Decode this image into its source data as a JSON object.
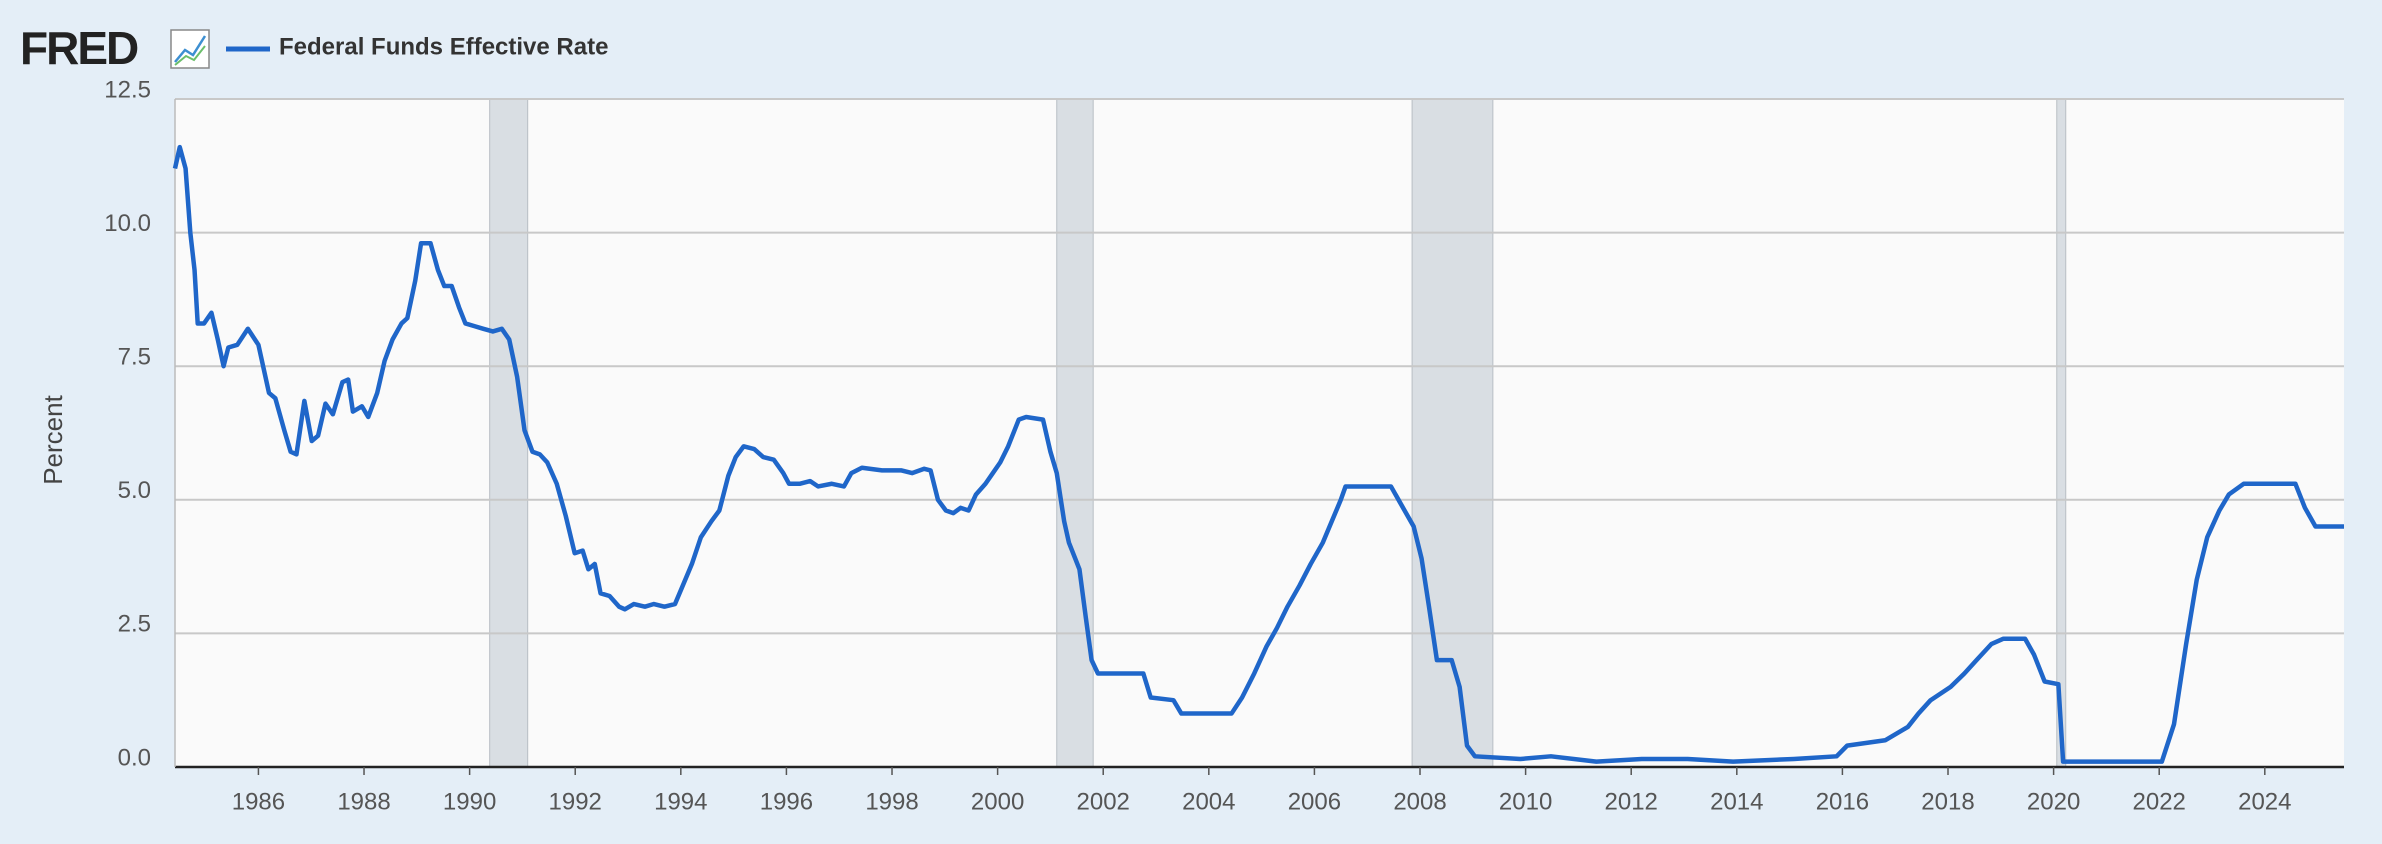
{
  "chart_data": {
    "type": "line",
    "brand": "FRED",
    "y_label": "Percent",
    "series": [
      {
        "name": "Federal Funds Effective Rate",
        "color": "#1f66c9",
        "x": [
          1984.42,
          1984.51,
          1984.62,
          1984.71,
          1984.79,
          1984.85,
          1984.97,
          1985.11,
          1985.23,
          1985.34,
          1985.43,
          1985.6,
          1985.8,
          1986.0,
          1986.2,
          1986.32,
          1986.49,
          1986.61,
          1986.72,
          1986.87,
          1987.01,
          1987.13,
          1987.27,
          1987.41,
          1987.59,
          1987.7,
          1987.79,
          1987.96,
          1988.08,
          1988.25,
          1988.39,
          1988.54,
          1988.71,
          1988.82,
          1988.97,
          1989.08,
          1989.26,
          1989.4,
          1989.52,
          1989.66,
          1989.8,
          1989.92,
          1990.09,
          1990.26,
          1990.44,
          1990.61,
          1990.75,
          1990.9,
          1991.04,
          1991.19,
          1991.33,
          1991.47,
          1991.65,
          1991.82,
          1991.99,
          1992.14,
          1992.25,
          1992.37,
          1992.48,
          1992.65,
          1992.83,
          1992.94,
          1993.11,
          1993.32,
          1993.49,
          1993.69,
          1993.89,
          1994.04,
          1994.21,
          1994.38,
          1994.58,
          1994.73,
          1994.9,
          1995.04,
          1995.19,
          1995.39,
          1995.56,
          1995.76,
          1995.94,
          1996.05,
          1996.25,
          1996.45,
          1996.6,
          1996.86,
          1997.09,
          1997.23,
          1997.43,
          1997.81,
          1998.18,
          1998.38,
          1998.61,
          1998.73,
          1998.87,
          1999.02,
          1999.16,
          1999.3,
          1999.45,
          1999.59,
          1999.77,
          1999.91,
          2000.05,
          2000.2,
          2000.4,
          2000.54,
          2000.86,
          2001.0,
          2001.12,
          2001.26,
          2001.35,
          2001.47,
          2001.55,
          2001.67,
          2001.78,
          2001.9,
          2002.41,
          2002.76,
          2002.9,
          2003.33,
          2003.48,
          2004.43,
          2004.63,
          2004.86,
          2005.09,
          2005.29,
          2005.49,
          2005.72,
          2005.93,
          2006.16,
          2006.33,
          2006.5,
          2006.59,
          2007.45,
          2007.65,
          2007.88,
          2008.03,
          2008.17,
          2008.32,
          2008.6,
          2008.75,
          2008.89,
          2009.04,
          2009.9,
          2010.48,
          2011.34,
          2012.2,
          2013.07,
          2013.93,
          2015.08,
          2015.89,
          2016.09,
          2016.81,
          2017.24,
          2017.44,
          2017.67,
          2018.05,
          2018.31,
          2018.54,
          2018.82,
          2019.05,
          2019.46,
          2019.63,
          2019.83,
          2020.09,
          2020.18,
          2022.05,
          2022.28,
          2022.51,
          2022.71,
          2022.91,
          2023.14,
          2023.32,
          2023.6,
          2024.58,
          2024.76,
          2024.96,
          2025.5
        ],
        "values": [
          11.2,
          11.6,
          11.2,
          10.0,
          9.3,
          8.3,
          8.3,
          8.5,
          8.0,
          7.5,
          7.85,
          7.9,
          8.2,
          7.9,
          7.0,
          6.9,
          6.3,
          5.9,
          5.85,
          6.85,
          6.1,
          6.2,
          6.8,
          6.6,
          7.2,
          7.25,
          6.65,
          6.75,
          6.55,
          7.0,
          7.6,
          8.0,
          8.3,
          8.4,
          9.1,
          9.8,
          9.8,
          9.3,
          9.0,
          9.0,
          8.6,
          8.3,
          8.25,
          8.2,
          8.15,
          8.2,
          8.0,
          7.3,
          6.3,
          5.9,
          5.85,
          5.7,
          5.3,
          4.7,
          4.0,
          4.05,
          3.7,
          3.8,
          3.25,
          3.2,
          3.0,
          2.95,
          3.05,
          3.0,
          3.05,
          3.0,
          3.05,
          3.4,
          3.8,
          4.3,
          4.6,
          4.8,
          5.45,
          5.8,
          6.0,
          5.95,
          5.8,
          5.75,
          5.5,
          5.3,
          5.3,
          5.35,
          5.25,
          5.3,
          5.25,
          5.5,
          5.6,
          5.55,
          5.55,
          5.5,
          5.58,
          5.55,
          5.0,
          4.8,
          4.75,
          4.85,
          4.8,
          5.1,
          5.3,
          5.5,
          5.7,
          6.0,
          6.5,
          6.55,
          6.5,
          5.9,
          5.5,
          4.6,
          4.2,
          3.9,
          3.7,
          2.8,
          2.0,
          1.75,
          1.75,
          1.75,
          1.3,
          1.25,
          1.0,
          1.0,
          1.3,
          1.75,
          2.25,
          2.6,
          3.0,
          3.4,
          3.8,
          4.2,
          4.6,
          5.0,
          5.25,
          5.25,
          4.9,
          4.5,
          3.9,
          3.0,
          2.0,
          2.0,
          1.5,
          0.4,
          0.2,
          0.15,
          0.2,
          0.1,
          0.15,
          0.15,
          0.1,
          0.15,
          0.2,
          0.4,
          0.5,
          0.75,
          1.0,
          1.25,
          1.5,
          1.75,
          2.0,
          2.3,
          2.4,
          2.4,
          2.1,
          1.6,
          1.55,
          0.1,
          0.1,
          0.8,
          2.3,
          3.5,
          4.3,
          4.8,
          5.1,
          5.3,
          5.3,
          4.85,
          4.5,
          4.5
        ]
      }
    ],
    "recessions": [
      [
        1990.38,
        1991.1
      ],
      [
        2001.12,
        2001.81
      ],
      [
        2007.85,
        2009.38
      ],
      [
        2020.06,
        2020.23
      ]
    ],
    "recession_color": "#d9dee3",
    "xlim": [
      1984.42,
      2025.5
    ],
    "xticks": [
      1986,
      1988,
      1990,
      1992,
      1994,
      1996,
      1998,
      2000,
      2002,
      2004,
      2006,
      2008,
      2010,
      2012,
      2014,
      2016,
      2018,
      2020,
      2022,
      2024
    ],
    "ylim": [
      0,
      12.5
    ],
    "yticks": [
      {
        "value": 0,
        "label": "0.0"
      },
      2.5,
      {
        "value": 5,
        "label": "5.0"
      },
      7.5,
      {
        "value": 10,
        "label": "10.0"
      },
      12.5
    ],
    "grid": true
  }
}
